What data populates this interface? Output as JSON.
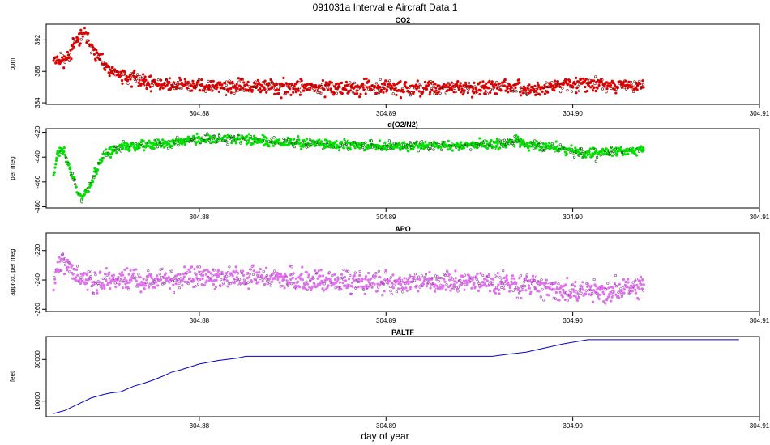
{
  "figure": {
    "title": "091031a   Interval e Aircraft Data 1",
    "xlabel": "day of year"
  },
  "chart_data": [
    {
      "type": "scatter",
      "title": "CO2",
      "ylabel": "ppm",
      "xlim": [
        304.8718,
        304.91
      ],
      "ylim": [
        383.8,
        394.0
      ],
      "xticks": [
        304.88,
        304.89,
        304.9,
        304.91
      ],
      "xtick_labels": [
        "304.88",
        "304.89",
        "304.90",
        "304.91"
      ],
      "yticks": [
        384,
        388,
        392
      ],
      "ytick_labels": [
        "384",
        "388",
        "392"
      ],
      "x_range": [
        304.8722,
        304.9038
      ],
      "noise": 0.45,
      "seed": 11,
      "color": "#e00000",
      "dark_color": "#7a0000",
      "points": [
        [
          304.8722,
          389.8
        ],
        [
          304.8725,
          389.6
        ],
        [
          304.8728,
          389.4
        ],
        [
          304.8731,
          390.2
        ],
        [
          304.8733,
          391.4
        ],
        [
          304.8736,
          392.4
        ],
        [
          304.8738,
          392.9
        ],
        [
          304.8741,
          391.8
        ],
        [
          304.8743,
          390.8
        ],
        [
          304.8745,
          389.9
        ],
        [
          304.8748,
          388.9
        ],
        [
          304.8752,
          388.0
        ],
        [
          304.8758,
          387.5
        ],
        [
          304.8765,
          387.1
        ],
        [
          304.8775,
          386.6
        ],
        [
          304.8785,
          386.2
        ],
        [
          304.88,
          386.1
        ],
        [
          304.882,
          386.0
        ],
        [
          304.886,
          385.95
        ],
        [
          304.89,
          385.95
        ],
        [
          304.8942,
          385.9
        ],
        [
          304.896,
          386.2
        ],
        [
          304.8975,
          385.6
        ],
        [
          304.899,
          386.1
        ],
        [
          304.9005,
          386.5
        ],
        [
          304.902,
          386.3
        ],
        [
          304.9038,
          386.1
        ]
      ]
    },
    {
      "type": "scatter",
      "title": "d(O2/N2)",
      "ylabel": "per meg",
      "xlim": [
        304.8718,
        304.91
      ],
      "ylim": [
        -481,
        -417
      ],
      "xticks": [
        304.88,
        304.89,
        304.9,
        304.91
      ],
      "xtick_labels": [
        "304.88",
        "304.89",
        "304.90",
        "304.91"
      ],
      "yticks": [
        -420,
        -440,
        -460,
        -480
      ],
      "ytick_labels": [
        "-420",
        "-440",
        "-460",
        "-480"
      ],
      "x_range": [
        304.8722,
        304.9038
      ],
      "noise": 2.0,
      "seed": 23,
      "color": "#00e000",
      "dark_color": "#005a00",
      "points": [
        [
          304.8722,
          -455
        ],
        [
          304.8724,
          -436
        ],
        [
          304.8727,
          -434
        ],
        [
          304.8729,
          -443
        ],
        [
          304.8731,
          -450
        ],
        [
          304.8733,
          -458
        ],
        [
          304.8735,
          -468
        ],
        [
          304.8737,
          -473
        ],
        [
          304.874,
          -466
        ],
        [
          304.8743,
          -458
        ],
        [
          304.8746,
          -446
        ],
        [
          304.875,
          -437
        ],
        [
          304.8755,
          -433
        ],
        [
          304.8765,
          -431
        ],
        [
          304.878,
          -429
        ],
        [
          304.88,
          -426
        ],
        [
          304.882,
          -425
        ],
        [
          304.884,
          -427
        ],
        [
          304.887,
          -430
        ],
        [
          304.89,
          -431
        ],
        [
          304.893,
          -431
        ],
        [
          304.8955,
          -430
        ],
        [
          304.897,
          -427
        ],
        [
          304.898,
          -431
        ],
        [
          304.8995,
          -433
        ],
        [
          304.9008,
          -438
        ],
        [
          304.902,
          -435
        ],
        [
          304.9038,
          -434
        ]
      ]
    },
    {
      "type": "scatter",
      "title": "APO",
      "ylabel": "approx. per meg",
      "xlim": [
        304.8718,
        304.91
      ],
      "ylim": [
        -261.5,
        -208
      ],
      "xticks": [
        304.88,
        304.89,
        304.9,
        304.91
      ],
      "xtick_labels": [
        "304.88",
        "304.89",
        "304.90",
        "304.91"
      ],
      "yticks": [
        -220,
        -240,
        -260
      ],
      "ytick_labels": [
        "-220",
        "-240",
        "-260"
      ],
      "x_range": [
        304.8722,
        304.9038
      ],
      "noise": 3.6,
      "seed": 37,
      "color": "#e070ee",
      "dark_color": "#9c3fb0",
      "points": [
        [
          304.8722,
          -240
        ],
        [
          304.8724,
          -232
        ],
        [
          304.8726,
          -227
        ],
        [
          304.873,
          -230
        ],
        [
          304.8735,
          -238
        ],
        [
          304.874,
          -241
        ],
        [
          304.875,
          -241
        ],
        [
          304.877,
          -240
        ],
        [
          304.88,
          -238
        ],
        [
          304.883,
          -238
        ],
        [
          304.886,
          -240
        ],
        [
          304.889,
          -242
        ],
        [
          304.892,
          -242
        ],
        [
          304.895,
          -242
        ],
        [
          304.8975,
          -243
        ],
        [
          304.9,
          -248
        ],
        [
          304.902,
          -247
        ],
        [
          304.9038,
          -245
        ]
      ]
    },
    {
      "type": "line",
      "title": "PALTF",
      "ylabel": "feet",
      "xlim": [
        304.8718,
        304.91
      ],
      "ylim": [
        2500,
        41000
      ],
      "xticks": [
        304.88,
        304.89,
        304.9,
        304.91
      ],
      "xtick_labels": [
        "304.88",
        "304.89",
        "304.90",
        "304.91"
      ],
      "yticks": [
        10000,
        30000
      ],
      "ytick_labels": [
        "10000",
        "30000"
      ],
      "color": "#0000cc",
      "points": [
        [
          304.8722,
          4000
        ],
        [
          304.8728,
          5500
        ],
        [
          304.8735,
          8500
        ],
        [
          304.8742,
          11500
        ],
        [
          304.8748,
          13000
        ],
        [
          304.8752,
          13800
        ],
        [
          304.8758,
          14500
        ],
        [
          304.8765,
          17200
        ],
        [
          304.877,
          18500
        ],
        [
          304.8775,
          20000
        ],
        [
          304.878,
          21800
        ],
        [
          304.8785,
          23800
        ],
        [
          304.879,
          25000
        ],
        [
          304.88,
          27800
        ],
        [
          304.881,
          29500
        ],
        [
          304.882,
          30600
        ],
        [
          304.8825,
          31500
        ],
        [
          304.8845,
          31500
        ],
        [
          304.89,
          31500
        ],
        [
          304.8957,
          31500
        ],
        [
          304.8965,
          32500
        ],
        [
          304.8975,
          33500
        ],
        [
          304.8985,
          35500
        ],
        [
          304.8995,
          37500
        ],
        [
          304.9008,
          39500
        ],
        [
          304.902,
          39500
        ],
        [
          304.906,
          39500
        ],
        [
          304.9089,
          39500
        ]
      ]
    }
  ]
}
